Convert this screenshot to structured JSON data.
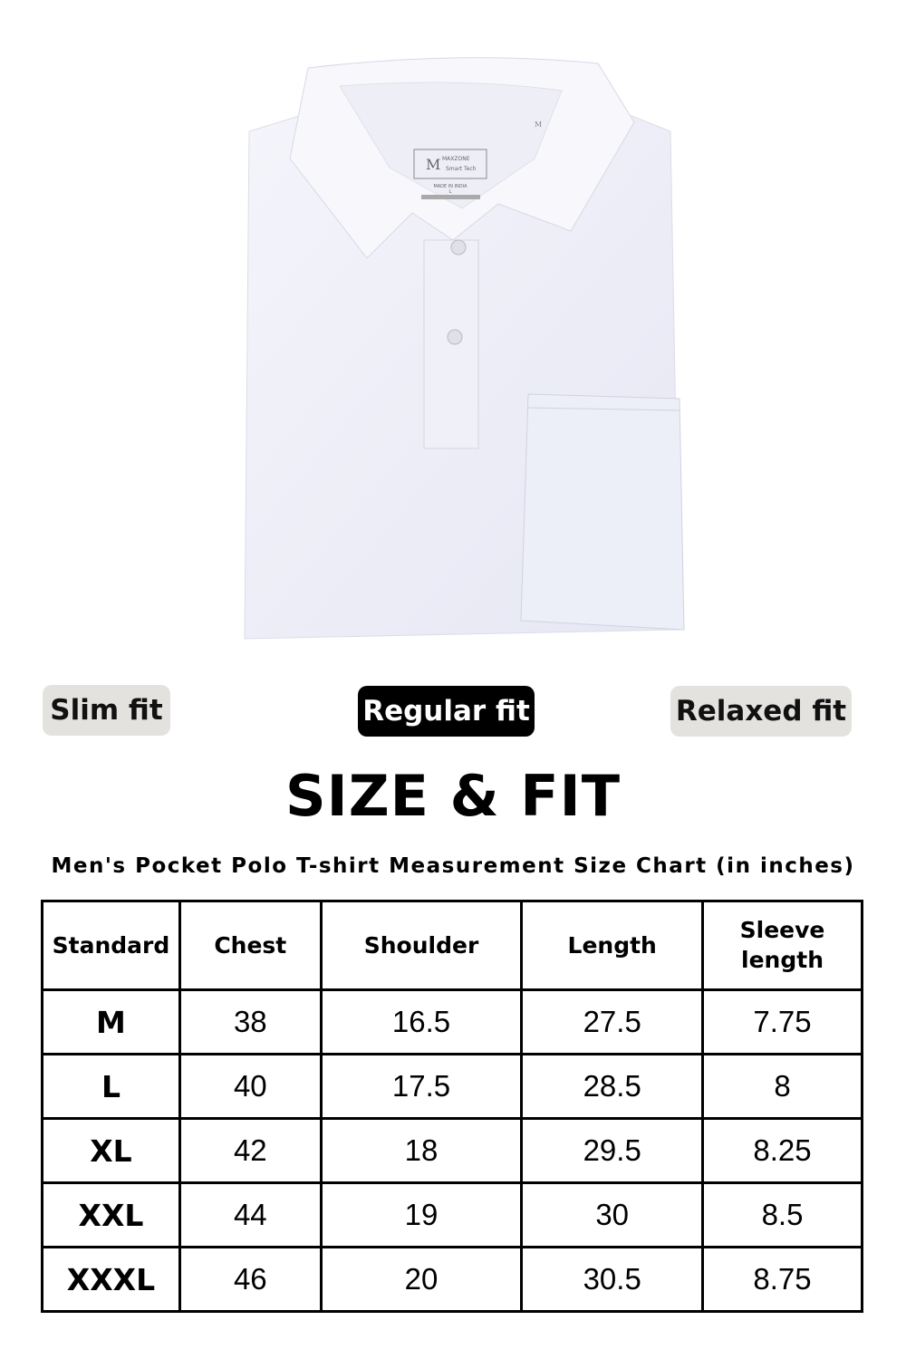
{
  "product_image": {
    "label_brand": "MAXZONE",
    "label_tagline": "Smart Tech",
    "label_origin": "MADE IN INDIA",
    "label_size": "L",
    "size_tag": "M",
    "icon": "polo-shirt-photo"
  },
  "fit_options": [
    {
      "label": "Slim fit",
      "selected": false
    },
    {
      "label": "Regular fit",
      "selected": true
    },
    {
      "label": "Relaxed fit",
      "selected": false
    }
  ],
  "colors": {
    "selected_pill": "#000000",
    "unselected_pill": "#e4e2df"
  },
  "title": "SIZE & FIT",
  "subtitle": "Men's Pocket Polo T-shirt Measurement Size Chart (in inches)",
  "table": {
    "headers": [
      "Standard",
      "Chest",
      "Shoulder",
      "Length",
      "Sleeve length"
    ],
    "rows": [
      [
        "M",
        "38",
        "16.5",
        "27.5",
        "7.75"
      ],
      [
        "L",
        "40",
        "17.5",
        "28.5",
        "8"
      ],
      [
        "XL",
        "42",
        "18",
        "29.5",
        "8.25"
      ],
      [
        "XXL",
        "44",
        "19",
        "30",
        "8.5"
      ],
      [
        "XXXL",
        "46",
        "20",
        "30.5",
        "8.75"
      ]
    ]
  }
}
